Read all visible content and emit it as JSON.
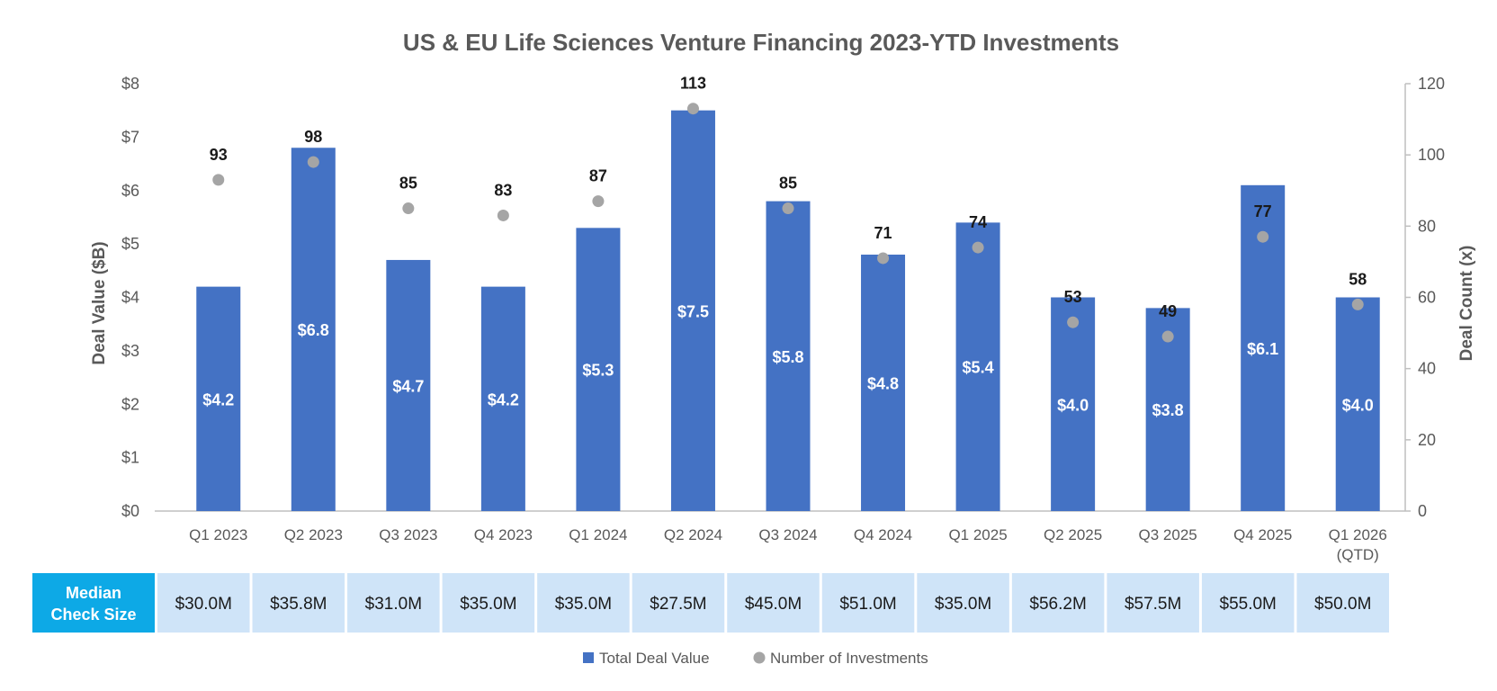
{
  "chart_data": {
    "type": "bar",
    "title": "US & EU Life Sciences Venture Financing 2023-YTD Investments",
    "categories": [
      [
        "Q1 2023"
      ],
      [
        "Q2 2023"
      ],
      [
        "Q3 2023"
      ],
      [
        "Q4 2023"
      ],
      [
        "Q1 2024"
      ],
      [
        "Q2 2024"
      ],
      [
        "Q3 2024"
      ],
      [
        "Q4 2024"
      ],
      [
        "Q1 2025"
      ],
      [
        "Q2 2025"
      ],
      [
        "Q3 2025"
      ],
      [
        "Q4 2025"
      ],
      [
        "Q1 2026",
        "(QTD)"
      ]
    ],
    "ylabel": "Deal Value ($B)",
    "y2label": "Deal Count (x)",
    "ylim": [
      0,
      8
    ],
    "y2lim": [
      0,
      120
    ],
    "yticks": [
      "$0",
      "$1",
      "$2",
      "$3",
      "$4",
      "$5",
      "$6",
      "$7",
      "$8"
    ],
    "y2ticks": [
      "0",
      "20",
      "40",
      "60",
      "80",
      "100",
      "120"
    ],
    "grid": false,
    "series": [
      {
        "name": "Total Deal Value",
        "type": "bar",
        "axis": "left",
        "color": "#4472C4",
        "values": [
          4.2,
          6.8,
          4.7,
          4.2,
          5.3,
          7.5,
          5.8,
          4.8,
          5.4,
          4.0,
          3.8,
          6.1,
          4.0
        ],
        "labels": [
          "$4.2",
          "$6.8",
          "$4.7",
          "$4.2",
          "$5.3",
          "$7.5",
          "$5.8",
          "$4.8",
          "$5.4",
          "$4.0",
          "$3.8",
          "$6.1",
          "$4.0"
        ]
      },
      {
        "name": "Number of Investments",
        "type": "scatter",
        "axis": "right",
        "color": "#A5A5A5",
        "values": [
          93,
          98,
          85,
          83,
          87,
          113,
          85,
          71,
          74,
          53,
          49,
          77,
          58
        ],
        "labels": [
          "93",
          "98",
          "85",
          "83",
          "87",
          "113",
          "85",
          "71",
          "74",
          "53",
          "49",
          "77",
          "58"
        ]
      }
    ],
    "table": {
      "header": [
        "Median",
        "Check Size"
      ],
      "values": [
        "$30.0M",
        "$35.8M",
        "$31.0M",
        "$35.0M",
        "$35.0M",
        "$27.5M",
        "$45.0M",
        "$51.0M",
        "$35.0M",
        "$56.2M",
        "$57.5M",
        "$55.0M",
        "$50.0M"
      ],
      "header_color": "#0DA9E6",
      "cell_color": "#CFE4F8"
    },
    "legend": {
      "position": "bottom",
      "entries": [
        "Total Deal Value",
        "Number of Investments"
      ]
    }
  }
}
